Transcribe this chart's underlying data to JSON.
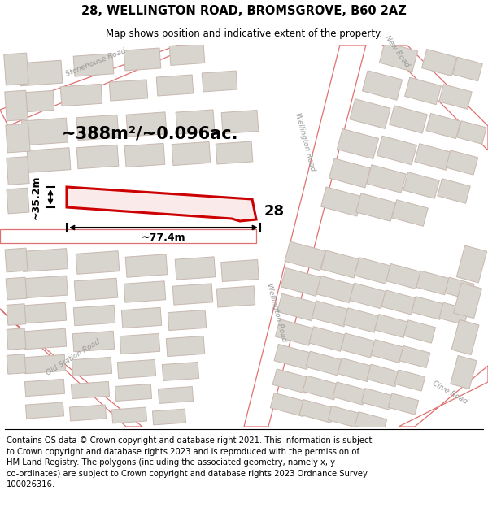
{
  "title_line1": "28, WELLINGTON ROAD, BROMSGROVE, B60 2AZ",
  "title_line2": "Map shows position and indicative extent of the property.",
  "footer_text": "Contains OS data © Crown copyright and database right 2021. This information is subject\nto Crown copyright and database rights 2023 and is reproduced with the permission of\nHM Land Registry. The polygons (including the associated geometry, namely x, y\nco-ordinates) are subject to Crown copyright and database rights 2023 Ordnance Survey\n100026316.",
  "area_text": "~388m²/~0.096ac.",
  "label_28": "28",
  "dim_width": "~77.4m",
  "dim_height": "~35.2m",
  "map_bg": "#f0eeeb",
  "road_fill": "#ffffff",
  "road_edge": "#e07070",
  "building_fill": "#d8d4ce",
  "building_edge": "#c8b8b0",
  "plot_fill": "#faeaea",
  "plot_edge": "#cc0000",
  "label_color": "#999999",
  "title_fontsize": 10.5,
  "subtitle_fontsize": 8.5,
  "footer_fontsize": 7.2,
  "area_fontsize": 15,
  "dim_fontsize": 9,
  "num28_fontsize": 13
}
